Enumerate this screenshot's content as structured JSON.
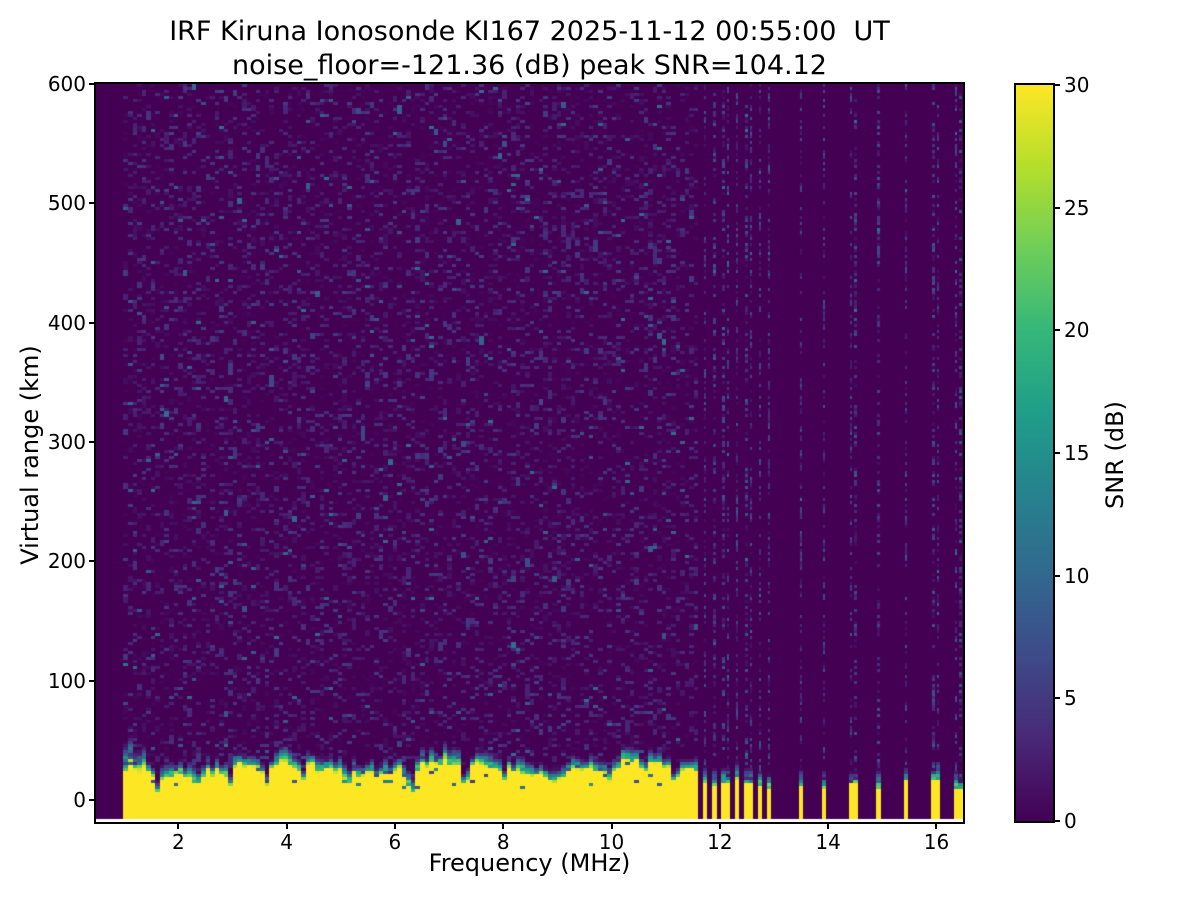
{
  "chart_data": {
    "type": "heatmap",
    "title_line1": "IRF Kiruna Ionosonde KI167 2025-11-12 00:55:00  UT",
    "title_line2": "noise_floor=-121.36 (dB) peak SNR=104.12",
    "xlabel": "Frequency (MHz)",
    "ylabel": "Virtual range (km)",
    "xlim": [
      0.48,
      16.49
    ],
    "ylim": [
      -18.5,
      600
    ],
    "xticks": [
      2,
      4,
      6,
      8,
      10,
      12,
      14,
      16
    ],
    "yticks": [
      0,
      100,
      200,
      300,
      400,
      500,
      600
    ],
    "grid": false,
    "legend": "none",
    "colorbar": {
      "label": "SNR (dB)",
      "vmin": 0,
      "vmax": 30,
      "ticks": [
        0,
        5,
        10,
        15,
        20,
        25,
        30
      ]
    },
    "colormap": {
      "name": "viridis",
      "stops": [
        "#440154",
        "#482878",
        "#3e4a89",
        "#31688e",
        "#26828e",
        "#1f9e89",
        "#35b779",
        "#6ece58",
        "#b5de2b",
        "#fde725"
      ]
    },
    "data_extent": {
      "fmin_mhz": 1.02,
      "fmax_mhz": 16.49,
      "range_min_km": -16,
      "range_max_km": 600
    },
    "features": {
      "seed": 7,
      "bins": 190,
      "rows": 245,
      "background_db": 0,
      "noise_region": {
        "fmin": 1.02,
        "fmax": 11.62,
        "speckle_density": 0.33,
        "speckle_typ_db": 5.2,
        "bright_db": 11
      },
      "ground_clutter": {
        "fmin": 1.02,
        "fmax": 11.62,
        "top_km_base": 26,
        "top_km_wave_amp": 5,
        "top_km_jitter": 7,
        "fringe_km": 11,
        "left_enhanced_below_mhz": 1.45,
        "left_extra_fringe_km": 17,
        "saturated_db": 30,
        "notches": [
          {
            "f": 1.62,
            "w": 0.07,
            "d": 14
          },
          {
            "f": 2.33,
            "w": 0.06,
            "d": 10
          },
          {
            "f": 2.95,
            "w": 0.07,
            "d": 13
          },
          {
            "f": 3.62,
            "w": 0.09,
            "d": 17
          },
          {
            "f": 4.28,
            "w": 0.07,
            "d": 12
          },
          {
            "f": 5.15,
            "w": 0.07,
            "d": 10
          },
          {
            "f": 6.3,
            "w": 0.1,
            "d": 20
          },
          {
            "f": 7.3,
            "w": 0.09,
            "d": 19
          },
          {
            "f": 8.0,
            "w": 0.06,
            "d": 9
          },
          {
            "f": 8.95,
            "w": 0.07,
            "d": 11
          },
          {
            "f": 9.95,
            "w": 0.08,
            "d": 12
          },
          {
            "f": 10.6,
            "w": 0.06,
            "d": 9
          },
          {
            "f": 11.15,
            "w": 0.07,
            "d": 13
          }
        ]
      },
      "rfi_dense_stripes": {
        "start_mhz": 11.72,
        "period_mhz": 0.2,
        "count": 7,
        "half_width_mhz": 0.055,
        "yellow_top_km": [
          14,
          12,
          15,
          16,
          13,
          12,
          10
        ],
        "fringe_km": 16,
        "dot_density": 0.42
      },
      "rfi_sparse_stripes": {
        "freqs_mhz": [
          13.48,
          13.94,
          14.46,
          14.92,
          15.45,
          15.97,
          16.4
        ],
        "half_width_mhz": 0.06,
        "yellow_top_km": [
          12,
          9,
          13,
          8,
          16,
          17,
          10
        ],
        "fringe_km": 14,
        "dot_density": 0.4
      }
    }
  },
  "colors": {
    "figure_background": "#ffffff",
    "axis": "#000000",
    "text": "#000000",
    "no_data": "#440154",
    "saturated": "#fde725"
  }
}
